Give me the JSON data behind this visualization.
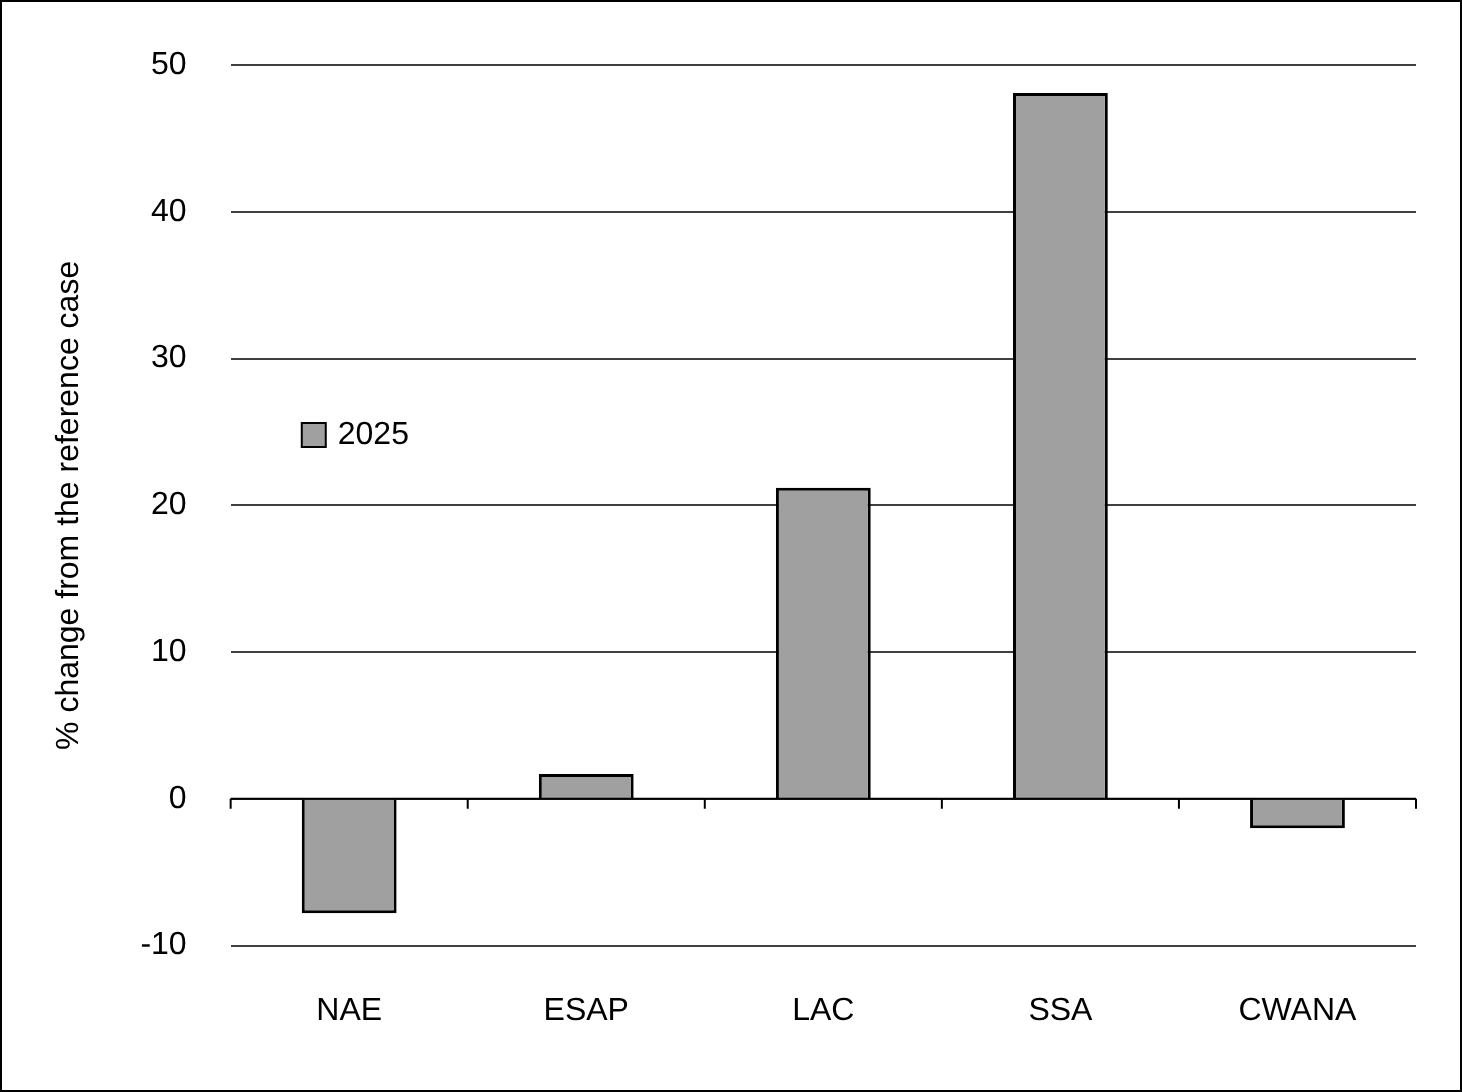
{
  "chart_data": {
    "type": "bar",
    "ylabel": "% change from the reference case",
    "categories": [
      "NAE",
      "ESAP",
      "LAC",
      "SSA",
      "CWANA"
    ],
    "series": [
      {
        "name": "2025",
        "color": "#a0a0a0",
        "values": [
          -7.8,
          1.7,
          21.2,
          48.1,
          -2.0
        ]
      }
    ],
    "ylim": [
      -10,
      50
    ],
    "yticks": [
      -10,
      0,
      10,
      20,
      30,
      40,
      50
    ],
    "grid": "y",
    "legend": "left"
  }
}
